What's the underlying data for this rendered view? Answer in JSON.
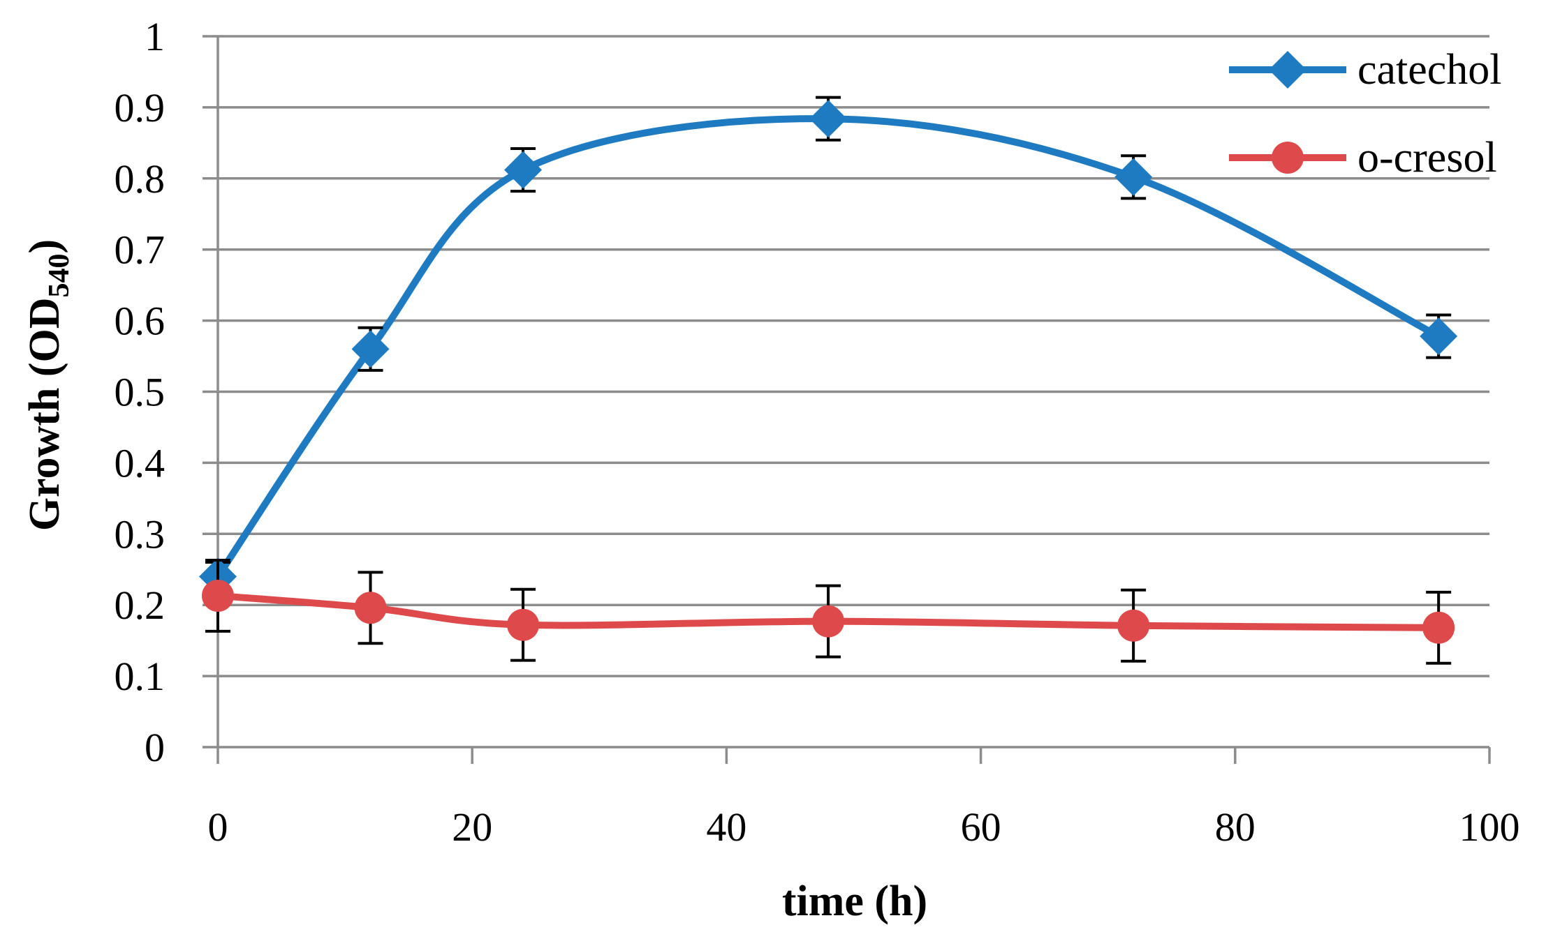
{
  "chart_data": {
    "type": "line",
    "title": "",
    "xlabel": "time (h)",
    "ylabel": {
      "prefix": "Growth (OD",
      "subscript": "540",
      "suffix": ")"
    },
    "xlim": [
      0,
      100
    ],
    "ylim": [
      0,
      1
    ],
    "xticks": [
      0,
      20,
      40,
      60,
      80,
      100
    ],
    "yticks": [
      0,
      0.1,
      0.2,
      0.3,
      0.4,
      0.5,
      0.6,
      0.7,
      0.8,
      0.9,
      1
    ],
    "ytick_labels": [
      "0",
      "0.1",
      "0.2",
      "0.3",
      "0.4",
      "0.5",
      "0.6",
      "0.7",
      "0.8",
      "0.9",
      "1"
    ],
    "xtick_labels": [
      "0",
      "20",
      "40",
      "60",
      "80",
      "100"
    ],
    "grid": "horizontal",
    "legend_position": "top-right",
    "series": [
      {
        "name": "catechol",
        "color": "#1f7bc1",
        "marker": "diamond",
        "x": [
          0,
          12,
          24,
          48,
          72,
          96
        ],
        "y": [
          0.24,
          0.56,
          0.812,
          0.884,
          0.802,
          0.578
        ],
        "error": [
          0.02,
          0.03,
          0.03,
          0.03,
          0.03,
          0.03
        ]
      },
      {
        "name": "o-cresol",
        "color": "#de4a4b",
        "marker": "circle",
        "x": [
          0,
          12,
          24,
          48,
          72,
          96
        ],
        "y": [
          0.213,
          0.196,
          0.172,
          0.177,
          0.171,
          0.168
        ],
        "error": [
          0.05,
          0.05,
          0.05,
          0.05,
          0.05,
          0.05
        ]
      }
    ]
  }
}
